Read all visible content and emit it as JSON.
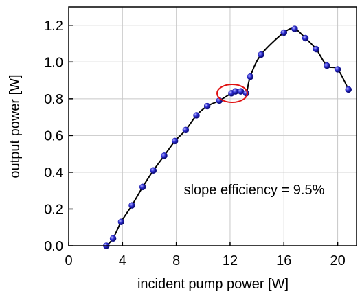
{
  "chart_data": {
    "type": "scatter",
    "x_label": "incident pump power [W]",
    "y_label": "output power [W]",
    "annotation": "slope efficiency = 9.5%",
    "xlim": [
      0,
      21.4
    ],
    "ylim": [
      0,
      1.3
    ],
    "xticks": [
      0,
      4,
      8,
      12,
      16,
      20
    ],
    "yticks": [
      {
        "value": 0,
        "label": "0.0"
      },
      0.2,
      0.4,
      0.6,
      0.8,
      {
        "value": 1,
        "label": "1.0"
      },
      1.2
    ],
    "grid": true,
    "series": [
      {
        "color": "#1a1aa8",
        "line_color": "#000000",
        "x": [
          2.8,
          3.3,
          3.9,
          4.7,
          5.5,
          6.3,
          7.1,
          7.9,
          8.7,
          9.5,
          10.3,
          11.2,
          12.1,
          12.4,
          12.8,
          13.2,
          13.5,
          14.3,
          16.0,
          16.8,
          17.6,
          18.4,
          19.2,
          20.0,
          20.8
        ],
        "values": [
          0.0,
          0.04,
          0.13,
          0.22,
          0.32,
          0.41,
          0.49,
          0.57,
          0.63,
          0.71,
          0.76,
          0.79,
          0.83,
          0.84,
          0.84,
          0.83,
          0.92,
          1.04,
          1.16,
          1.18,
          1.13,
          1.07,
          0.98,
          0.96,
          0.85
        ]
      }
    ]
  }
}
